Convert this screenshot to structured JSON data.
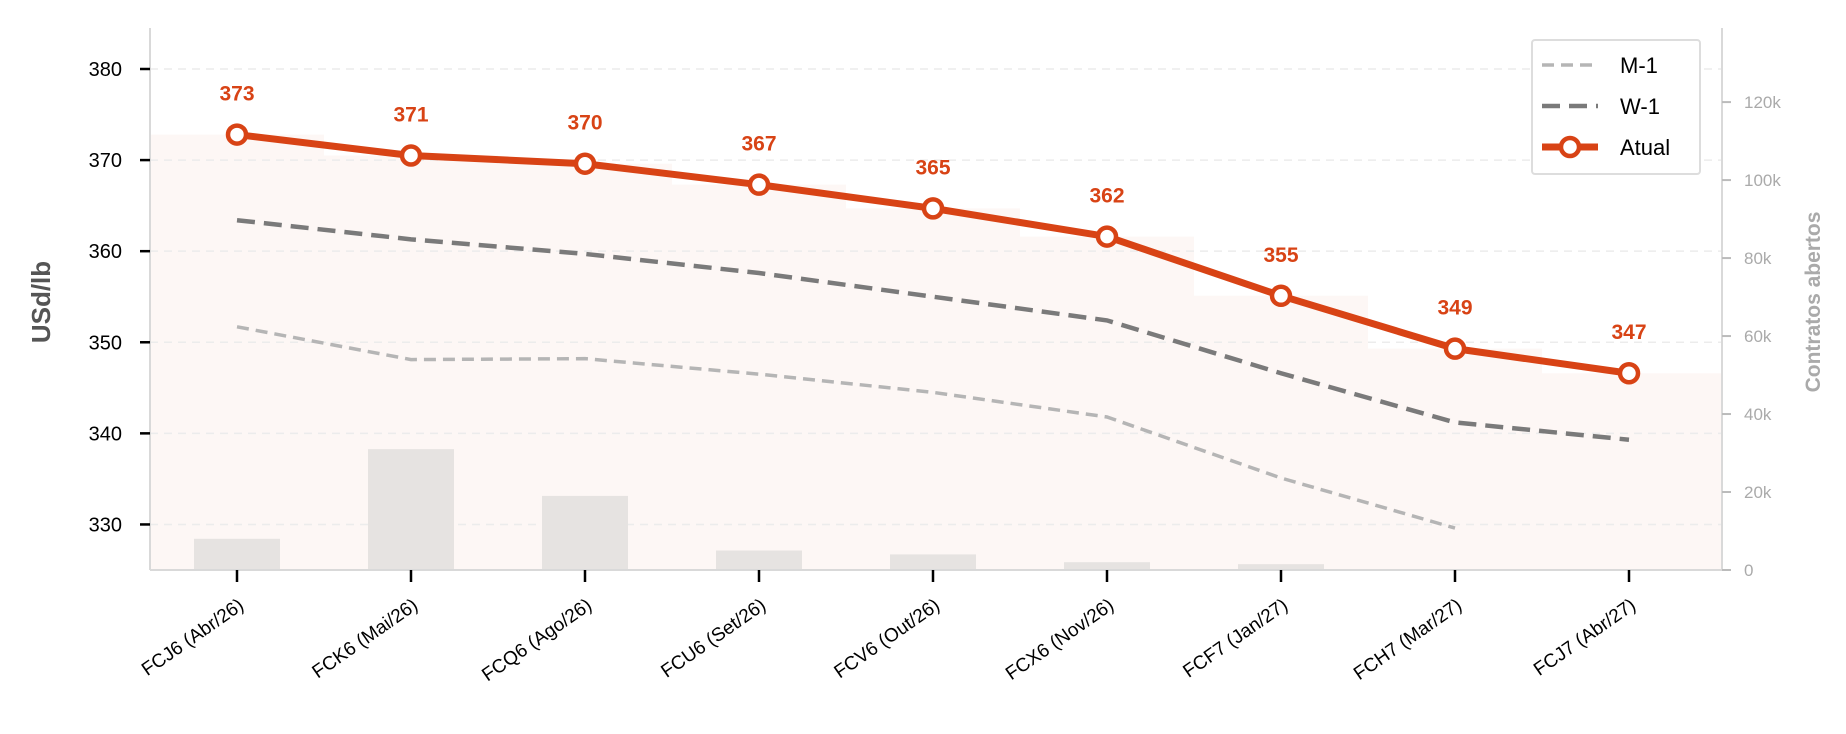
{
  "colors": {
    "atual": "#d84315",
    "w1": "#7a7a7a",
    "m1": "#b5b5b5",
    "bars": "#e6e3e1",
    "area": "#fdf7f5",
    "right_axis": "#aaaaaa",
    "grid": "#ececec"
  },
  "chart_data": {
    "type": "line",
    "categories": [
      "FCJ6 (Abr/26)",
      "FCK6 (Mai/26)",
      "FCQ6 (Ago/26)",
      "FCU6 (Set/26)",
      "FCV6 (Out/26)",
      "FCX6 (Nov/26)",
      "FCF7 (Jan/27)",
      "FCH7 (Mar/27)",
      "FCJ7 (Abr/27)"
    ],
    "ylabel": "USd/lb",
    "y2label": "Contratos abertos",
    "ylim": [
      325,
      384.5
    ],
    "yticks": [
      330,
      340,
      350,
      360,
      370,
      380
    ],
    "y2lim": [
      0,
      139000
    ],
    "y2ticks": [
      0,
      20000,
      40000,
      60000,
      80000,
      100000,
      120000
    ],
    "y2ticklabels": [
      "0",
      "20k",
      "40k",
      "60k",
      "80k",
      "100k",
      "120k"
    ],
    "grid": true,
    "legend_position": "top-right",
    "series": [
      {
        "name": "M-1",
        "style": "dashed-light",
        "values": [
          351.7,
          348.1,
          348.2,
          346.5,
          344.5,
          341.8,
          335.1,
          329.6,
          null
        ]
      },
      {
        "name": "W-1",
        "style": "dashed-dark",
        "values": [
          363.4,
          361.3,
          359.7,
          357.6,
          355.0,
          352.4,
          346.6,
          341.2,
          339.3
        ]
      },
      {
        "name": "Atual",
        "style": "solid-marker",
        "values": [
          372.8,
          370.5,
          369.6,
          367.3,
          364.7,
          361.6,
          355.1,
          349.3,
          346.6
        ],
        "labels": [
          "373",
          "371",
          "370",
          "367",
          "365",
          "362",
          "355",
          "349",
          "347"
        ]
      }
    ],
    "open_interest": [
      8000,
      31000,
      19000,
      5000,
      4000,
      2000,
      1500,
      0,
      0
    ]
  }
}
